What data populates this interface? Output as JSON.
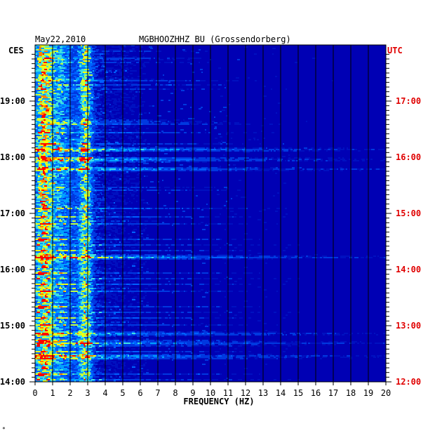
{
  "header": {
    "date": "May22,2010",
    "station": "MGBHOOZHHZ BU (Grossendorberg)",
    "left_tz": "CES",
    "right_tz": "UTC"
  },
  "footer": {
    "mark": "*"
  },
  "colors": {
    "background": "#0000b4",
    "grid": "#000000",
    "left_text": "#000000",
    "right_text": "#e00000",
    "palette": [
      "#0010c0",
      "#0038e0",
      "#0060ff",
      "#00a0ff",
      "#40e0e0",
      "#c0ff40",
      "#ffff00",
      "#ff8000",
      "#ff0000"
    ]
  },
  "chart_data": {
    "type": "heatmap",
    "title": "",
    "xlabel": "FREQUENCY (HZ)",
    "ylabel": "",
    "x_range": [
      0,
      20
    ],
    "x_ticks": [
      "0",
      "1",
      "2",
      "3",
      "4",
      "5",
      "6",
      "7",
      "8",
      "9",
      "10",
      "11",
      "12",
      "13",
      "14",
      "15",
      "16",
      "17",
      "18",
      "19",
      "20"
    ],
    "y_left_ticks": [
      "19:00",
      "18:00",
      "17:00",
      "16:00",
      "15:00",
      "14:00"
    ],
    "y_right_ticks": [
      "17:00",
      "16:00",
      "15:00",
      "14:00",
      "13:00",
      "12:00"
    ],
    "y_range_local": [
      "14:00",
      "19:52"
    ],
    "grid": true,
    "hot_bands_hz": [
      0.4,
      2.8
    ],
    "strong_events_local": [
      "18:09",
      "17:58",
      "17:48",
      "16:14",
      "14:52",
      "14:42",
      "14:28"
    ]
  }
}
